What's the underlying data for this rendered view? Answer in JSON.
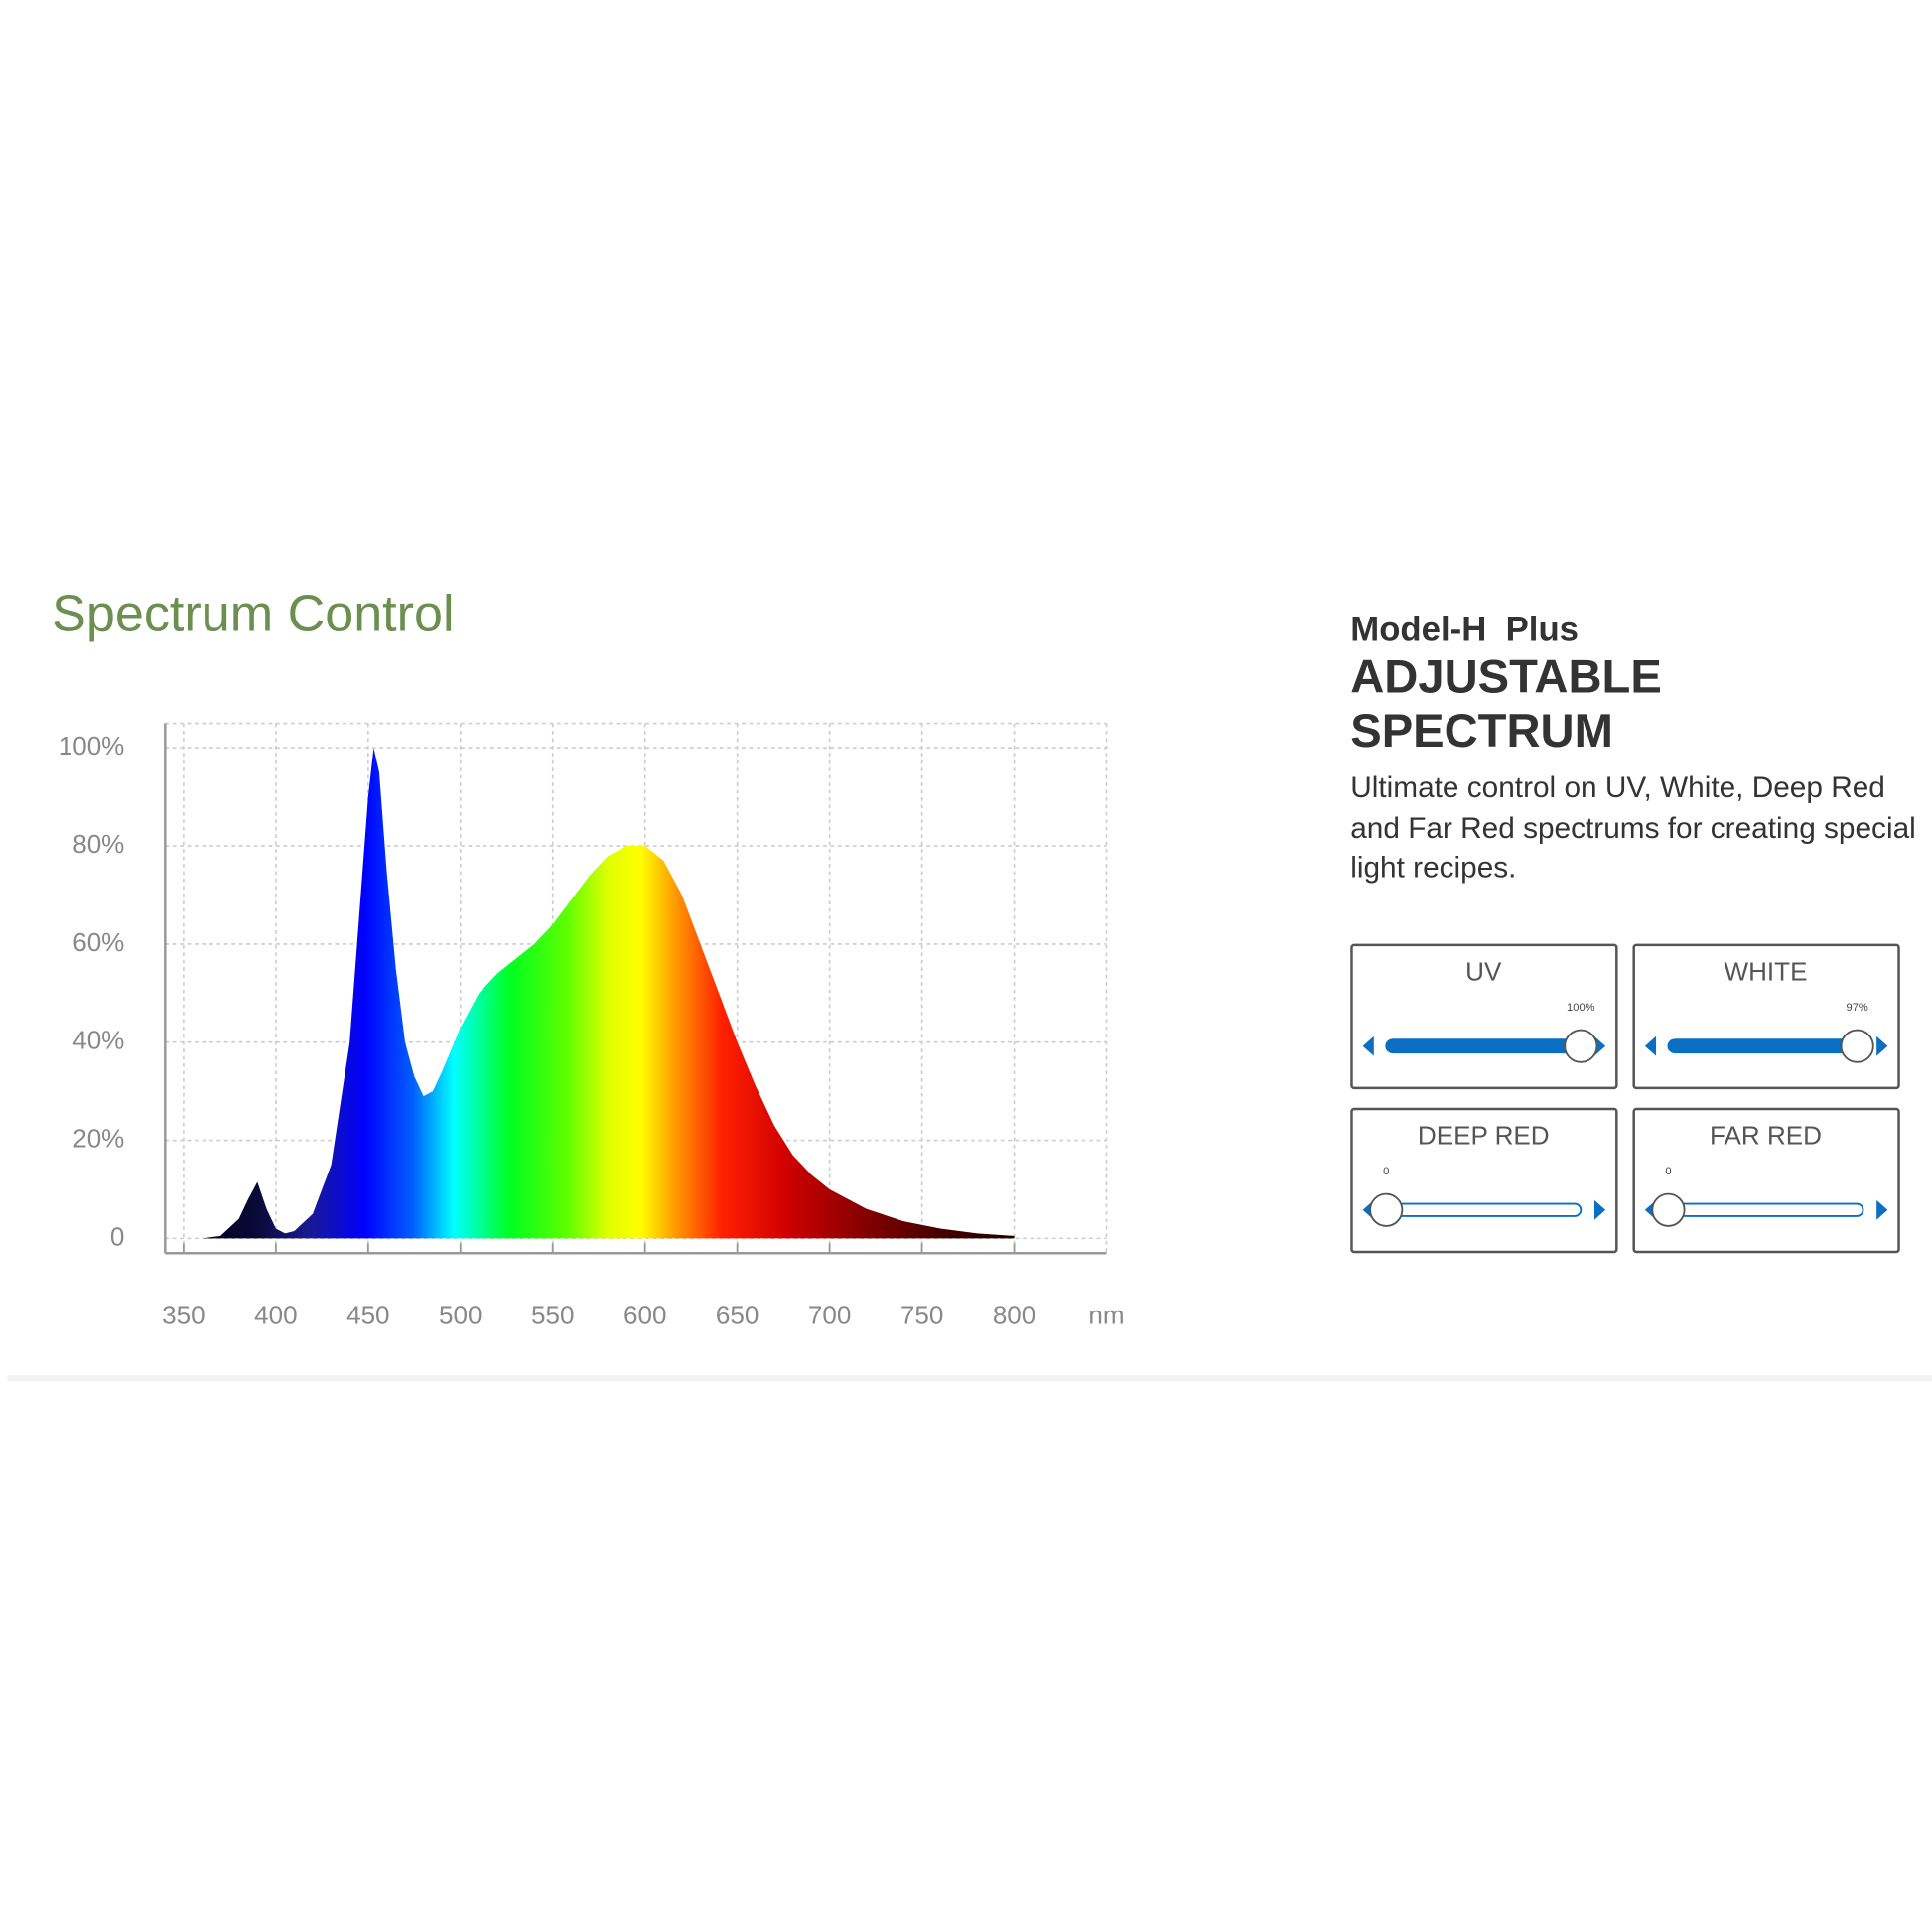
{
  "chart_data": {
    "type": "area",
    "title": "Spectrum Control",
    "x_label": "nm",
    "x": [
      360,
      370,
      380,
      385,
      390,
      395,
      400,
      405,
      410,
      420,
      430,
      440,
      445,
      450,
      453,
      456,
      460,
      465,
      470,
      475,
      480,
      485,
      490,
      500,
      510,
      520,
      530,
      540,
      550,
      560,
      570,
      580,
      590,
      600,
      610,
      620,
      630,
      640,
      650,
      660,
      670,
      680,
      690,
      700,
      720,
      740,
      760,
      780,
      800
    ],
    "values": [
      0,
      0.5,
      4,
      8,
      11.5,
      6,
      2,
      1,
      1.5,
      5,
      15,
      40,
      65,
      90,
      100,
      95,
      75,
      55,
      40,
      33,
      29,
      30,
      34,
      43,
      50,
      54,
      57,
      60,
      64,
      69,
      74,
      78,
      80,
      80,
      77,
      70,
      60,
      50,
      40,
      31,
      23,
      17,
      13,
      10,
      6,
      3.5,
      2,
      1,
      0.5
    ],
    "xlim": [
      340,
      850
    ],
    "xticks": [
      350,
      400,
      450,
      500,
      550,
      600,
      650,
      700,
      750,
      800
    ],
    "ylim": [
      -3,
      105
    ],
    "yticks": [
      0,
      {
        "value": 20,
        "label": "20%"
      },
      {
        "value": 40,
        "label": "40%"
      },
      {
        "value": 60,
        "label": "60%"
      },
      {
        "value": 80,
        "label": "80%"
      },
      {
        "value": 100,
        "label": "100%"
      }
    ],
    "grid": true
  },
  "panel": {
    "model": "Model-H  Plus",
    "heading": "ADJUSTABLE SPECTRUM",
    "description": "Ultimate control on UV, White, Deep Red and Far Red spectrums for creating special light recipes.",
    "slider_range": [
      0,
      100
    ],
    "sliders": [
      {
        "name": "UV",
        "value": 100,
        "value_label": "100%"
      },
      {
        "name": "WHITE",
        "value": 97,
        "value_label": "97%"
      },
      {
        "name": "DEEP RED",
        "value": 0,
        "value_label": "0"
      },
      {
        "name": "FAR RED",
        "value": 0,
        "value_label": "0"
      }
    ]
  }
}
